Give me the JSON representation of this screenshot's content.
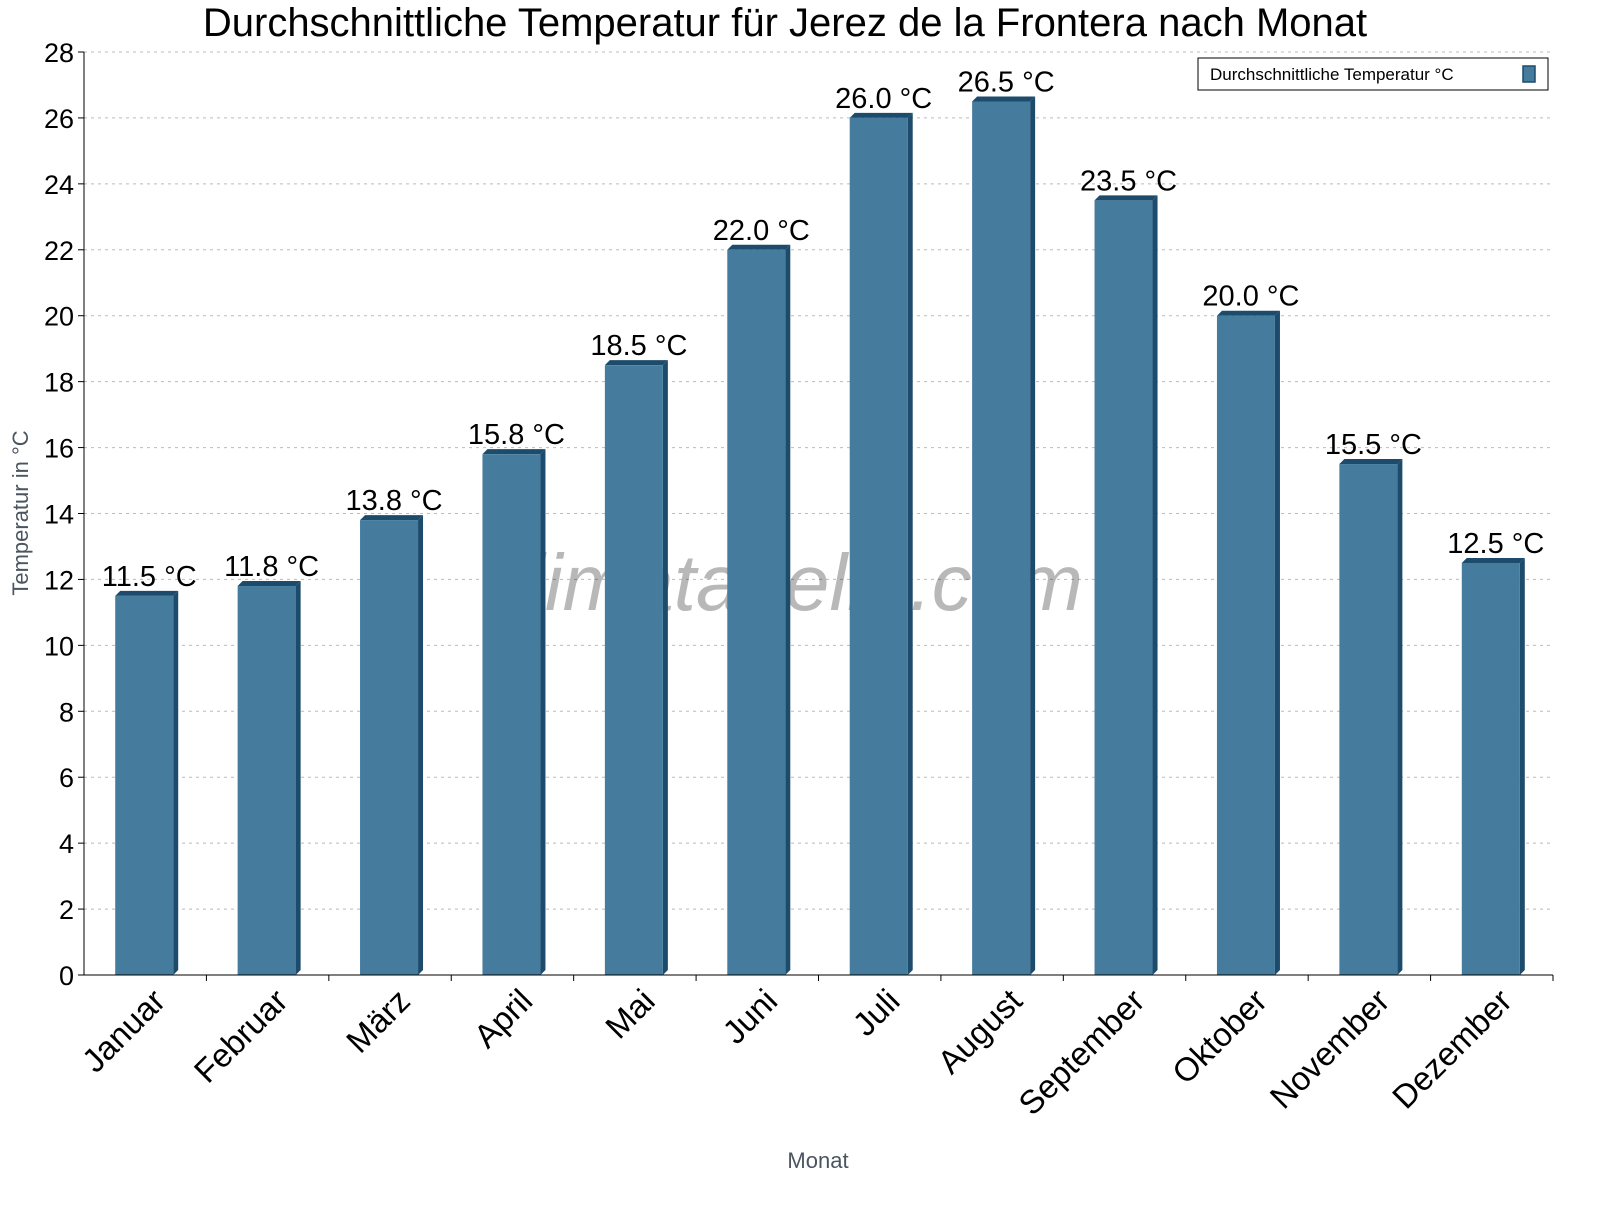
{
  "chart_data": {
    "type": "bar",
    "title": "Durchschnittliche Temperatur für Jerez de la Frontera nach Monat",
    "xlabel": "Monat",
    "ylabel": "Temperatur in °C",
    "categories": [
      "Januar",
      "Februar",
      "März",
      "April",
      "Mai",
      "Juni",
      "Juli",
      "August",
      "September",
      "Oktober",
      "November",
      "Dezember"
    ],
    "series": [
      {
        "name": "Durchschnittliche Temperatur °C",
        "values": [
          11.5,
          11.8,
          13.8,
          15.8,
          18.5,
          22.0,
          26.0,
          26.5,
          23.5,
          20.0,
          15.5,
          12.5
        ]
      }
    ],
    "data_labels": [
      "11.5 °C",
      "11.8 °C",
      "13.8 °C",
      "15.8 °C",
      "18.5 °C",
      "22.0 °C",
      "26.0 °C",
      "26.5 °C",
      "23.5 °C",
      "20.0 °C",
      "15.5 °C",
      "12.5 °C"
    ],
    "ylim": [
      0,
      28
    ],
    "yticks": [
      "0",
      "2",
      "4",
      "6",
      "8",
      "10",
      "12",
      "14",
      "16",
      "18",
      "20",
      "22",
      "24",
      "26",
      "28"
    ],
    "grid": true,
    "legend_position": "top-right",
    "colors": {
      "bar": "#457b9d",
      "bar_shade": "#1d4b6c"
    },
    "watermark": "klimatabelle.com"
  }
}
